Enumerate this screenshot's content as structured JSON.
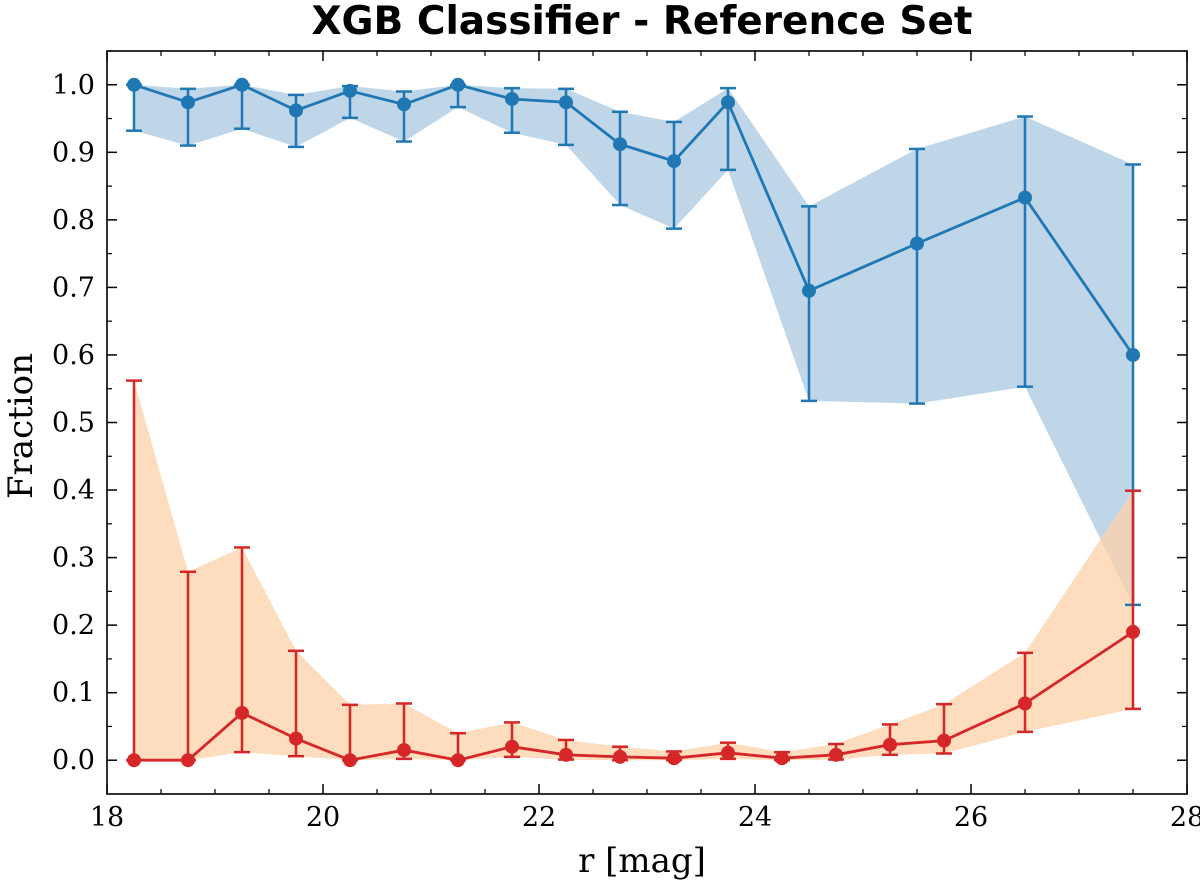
{
  "chart_data": {
    "type": "line",
    "title": "XGB Classifier - Reference Set",
    "xlabel": "r [mag]",
    "ylabel": "Fraction",
    "xlim": [
      18,
      28
    ],
    "ylim": [
      -0.05,
      1.05
    ],
    "xticks": [
      "18",
      "20",
      "22",
      "24",
      "26",
      "28"
    ],
    "yticks": [
      "0.0",
      "0.1",
      "0.2",
      "0.3",
      "0.4",
      "0.5",
      "0.6",
      "0.7",
      "0.8",
      "0.9",
      "1.0"
    ],
    "grid": false,
    "series": [
      {
        "color": "#1f77b4",
        "band_color": "#a9c8e2",
        "x": [
          18.25,
          18.75,
          19.25,
          19.75,
          20.25,
          20.75,
          21.25,
          21.75,
          22.25,
          22.75,
          23.25,
          23.75,
          24.5,
          25.5,
          26.5,
          27.5
        ],
        "y": [
          1.0,
          0.974,
          1.0,
          0.962,
          0.991,
          0.971,
          1.0,
          0.979,
          0.974,
          0.912,
          0.887,
          0.974,
          0.695,
          0.765,
          0.833,
          0.6
        ],
        "lower": [
          0.932,
          0.91,
          0.935,
          0.908,
          0.951,
          0.916,
          0.967,
          0.929,
          0.911,
          0.822,
          0.787,
          0.874,
          0.532,
          0.528,
          0.553,
          0.23
        ],
        "upper": [
          1.0,
          0.994,
          1.0,
          0.985,
          0.998,
          0.99,
          1.0,
          0.995,
          0.994,
          0.96,
          0.945,
          0.995,
          0.82,
          0.905,
          0.953,
          0.882
        ]
      },
      {
        "color": "#d62728",
        "band_color": "#fdd0a8",
        "x": [
          18.25,
          18.75,
          19.25,
          19.75,
          20.25,
          20.75,
          21.25,
          21.75,
          22.25,
          22.75,
          23.25,
          23.75,
          24.25,
          24.75,
          25.25,
          25.75,
          26.5,
          27.5
        ],
        "y": [
          0.0,
          0.0,
          0.07,
          0.032,
          0.0,
          0.015,
          0.0,
          0.02,
          0.008,
          0.005,
          0.003,
          0.011,
          0.003,
          0.008,
          0.023,
          0.029,
          0.084,
          0.19
        ],
        "lower": [
          0.0,
          0.0,
          0.012,
          0.006,
          0.0,
          0.002,
          0.0,
          0.005,
          0.001,
          0.0,
          0.0,
          0.002,
          0.0,
          0.001,
          0.008,
          0.01,
          0.042,
          0.076
        ],
        "upper": [
          0.562,
          0.279,
          0.315,
          0.162,
          0.082,
          0.084,
          0.04,
          0.056,
          0.03,
          0.02,
          0.013,
          0.026,
          0.012,
          0.024,
          0.053,
          0.083,
          0.159,
          0.399
        ]
      }
    ]
  }
}
